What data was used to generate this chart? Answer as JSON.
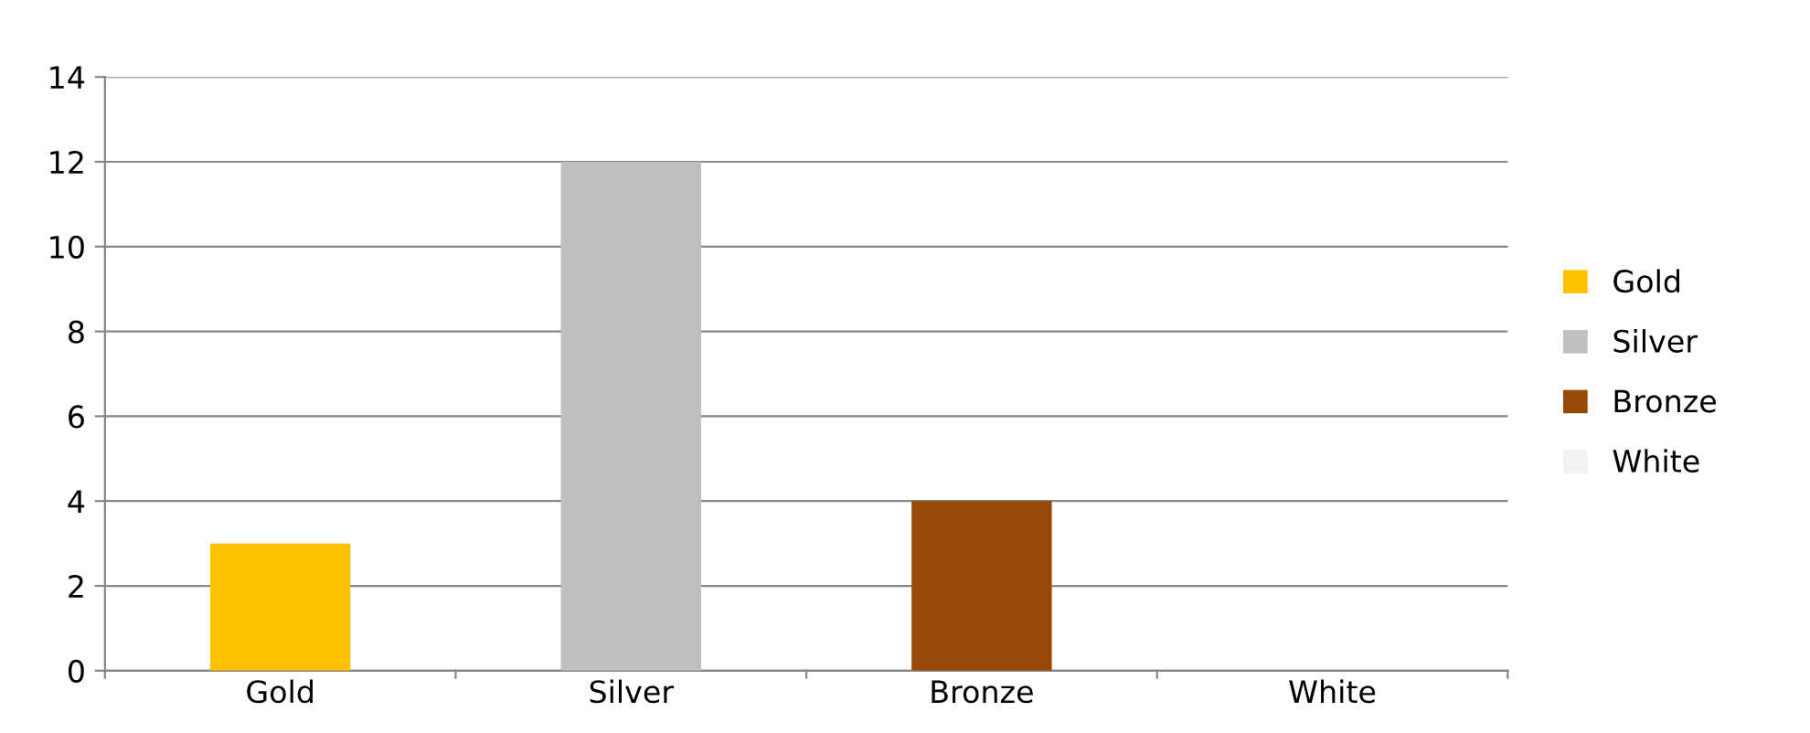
{
  "chart_data": {
    "type": "bar",
    "categories": [
      "Gold",
      "Silver",
      "Bronze",
      "White"
    ],
    "series": [
      {
        "name": "Gold",
        "color": "#ffc000",
        "values": [
          3,
          null,
          null,
          null
        ]
      },
      {
        "name": "Silver",
        "color": "#bfbfbf",
        "values": [
          null,
          12,
          null,
          null
        ]
      },
      {
        "name": "Bronze",
        "color": "#984807",
        "values": [
          null,
          null,
          4,
          null
        ]
      },
      {
        "name": "White",
        "color": "#f2f2f2",
        "values": [
          null,
          null,
          null,
          0
        ]
      }
    ],
    "ylim": [
      0,
      14
    ],
    "yticks": [
      0,
      2,
      4,
      6,
      8,
      10,
      12,
      14
    ],
    "grid": "y",
    "legend": "right"
  }
}
